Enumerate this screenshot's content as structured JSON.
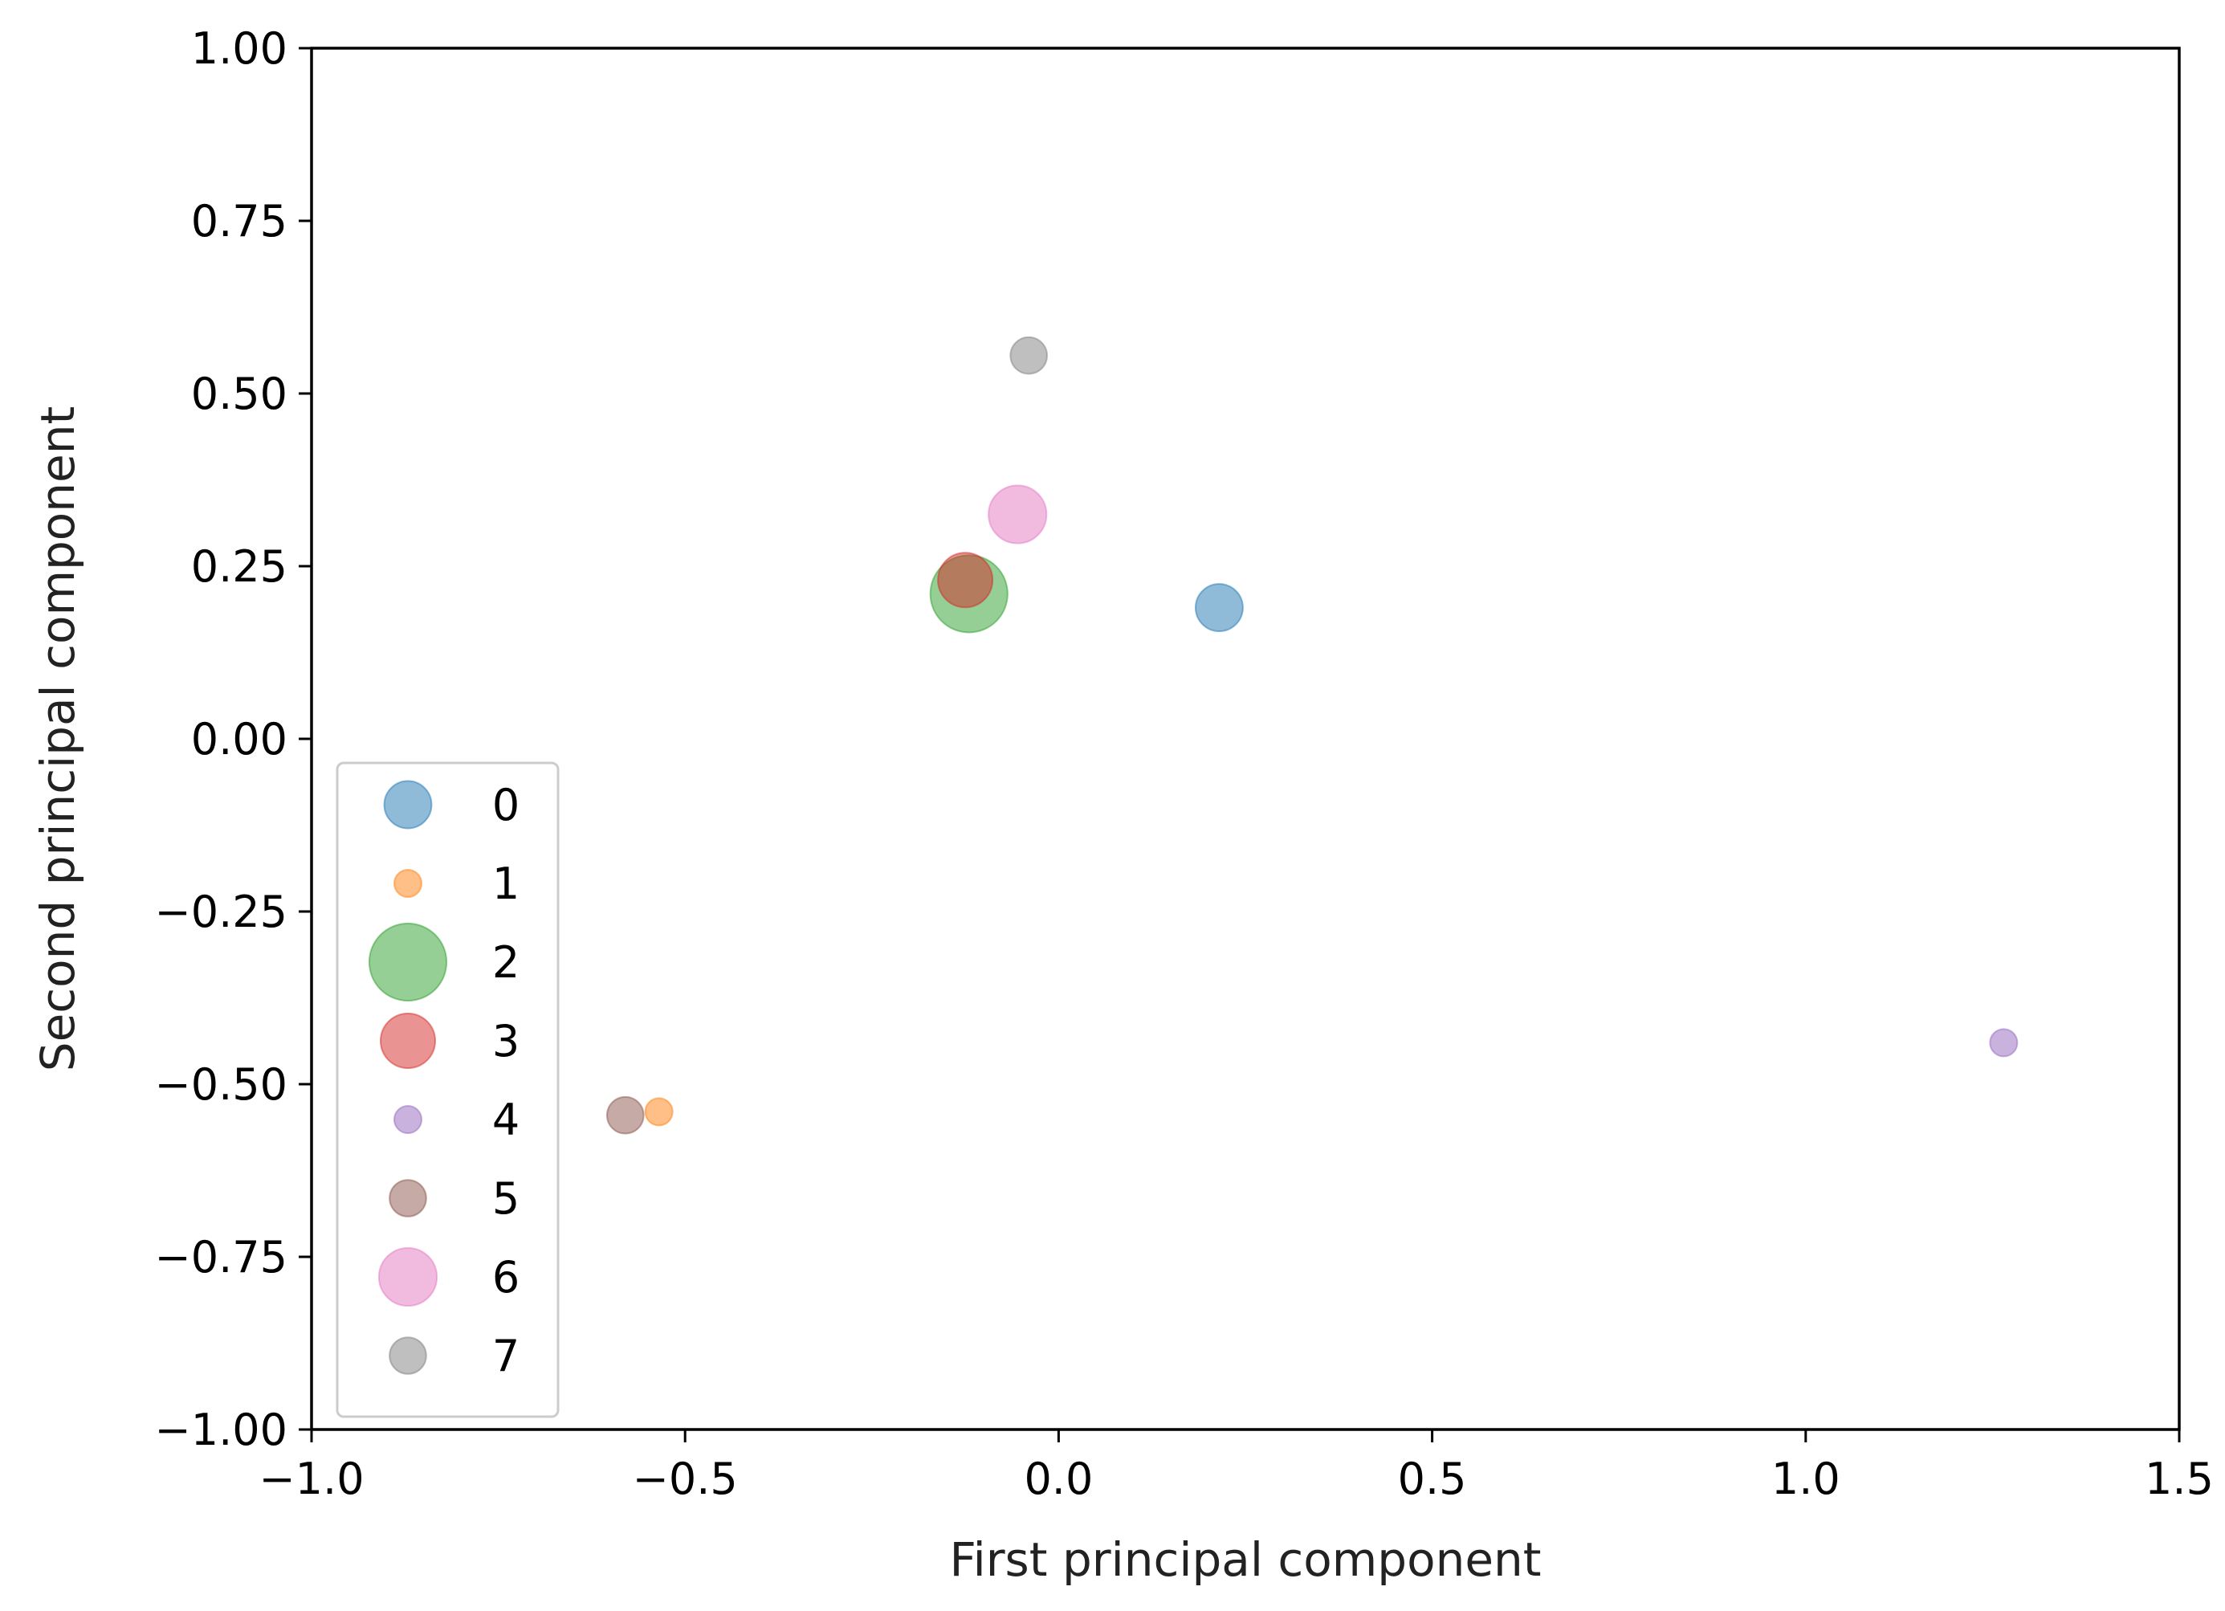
{
  "chart_data": {
    "type": "scatter",
    "title": "",
    "xlabel": "First principal component",
    "ylabel": "Second principal component",
    "xlim": [
      -1.0,
      1.5
    ],
    "ylim": [
      -1.0,
      1.0
    ],
    "xticks": [
      -1.0,
      -0.5,
      0.0,
      0.5,
      1.0,
      1.5
    ],
    "xtick_labels": [
      "−1.0",
      "−0.5",
      "0.0",
      "0.5",
      "1.0",
      "1.5"
    ],
    "yticks": [
      -1.0,
      -0.75,
      -0.5,
      -0.25,
      0.0,
      0.25,
      0.5,
      0.75,
      1.0
    ],
    "ytick_labels": [
      "−1.00",
      "−0.75",
      "−0.50",
      "−0.25",
      "0.00",
      "0.25",
      "0.50",
      "0.75",
      "1.00"
    ],
    "grid": false,
    "legend_position": "lower-left",
    "series": [
      {
        "name": "0",
        "x": 0.215,
        "y": 0.19,
        "size": 3,
        "color": "#1f77b4"
      },
      {
        "name": "1",
        "x": -0.535,
        "y": -0.54,
        "size": 1,
        "color": "#ff7f0e"
      },
      {
        "name": "2",
        "x": -0.12,
        "y": 0.21,
        "size": 8,
        "color": "#2ca02c"
      },
      {
        "name": "3",
        "x": -0.125,
        "y": 0.23,
        "size": 4,
        "color": "#d62728"
      },
      {
        "name": "4",
        "x": 1.265,
        "y": -0.44,
        "size": 1,
        "color": "#9467bd"
      },
      {
        "name": "5",
        "x": -0.58,
        "y": -0.545,
        "size": 1.8,
        "color": "#8c564b"
      },
      {
        "name": "6",
        "x": -0.055,
        "y": 0.325,
        "size": 4.5,
        "color": "#e377c2"
      },
      {
        "name": "7",
        "x": -0.04,
        "y": 0.555,
        "size": 1.8,
        "color": "#7f7f7f"
      }
    ]
  }
}
